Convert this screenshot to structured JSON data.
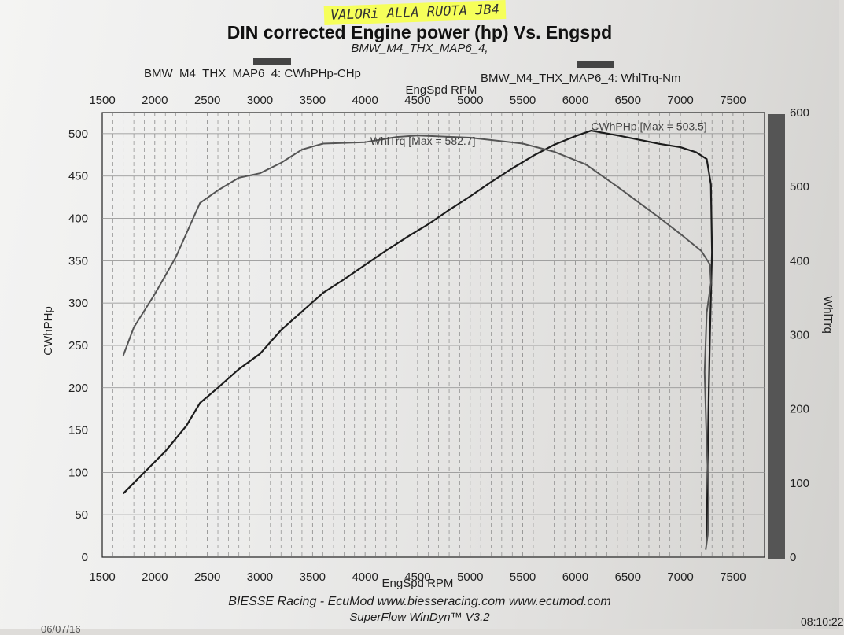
{
  "header": {
    "handwritten_note": "VALORi ALLA RUOTA JB4",
    "title": "DIN corrected Engine power (hp) Vs. Engspd",
    "subtitle": "BMW_M4_THX_MAP6_4,"
  },
  "legend": {
    "power_label": "BMW_M4_THX_MAP6_4: CWhPHp-CHp",
    "torque_label": "BMW_M4_THX_MAP6_4: WhlTrq-Nm"
  },
  "footer": {
    "line1": "BIESSE Racing - EcuMod www.biesseracing.com www.ecumod.com",
    "line2": "SuperFlow WinDyn™ V3.2",
    "timestamp": "08:10:22",
    "date": "06/07/16"
  },
  "colors": {
    "power_line": "#1c1c1c",
    "torque_line": "#555555",
    "grid": "#7a7a7a",
    "axis": "#222222",
    "legend_swatch": "#444444",
    "highlighter": "#f6ff5a"
  },
  "chart_data": {
    "type": "line",
    "xlabel": "EngSpd RPM",
    "ylabel_left": "CWhPHp",
    "ylabel_right": "WhlTrq",
    "xlim": [
      1500,
      7800
    ],
    "ylim_left": [
      0,
      525
    ],
    "ylim_right": [
      0,
      600
    ],
    "x_ticks": [
      1500,
      2000,
      2500,
      3000,
      3500,
      4000,
      4500,
      5000,
      5500,
      6000,
      6500,
      7000,
      7500
    ],
    "y_ticks_left": [
      0,
      50,
      100,
      150,
      200,
      250,
      300,
      350,
      400,
      450,
      500
    ],
    "y_ticks_right": [
      0,
      100,
      200,
      300,
      400,
      500,
      600
    ],
    "grid": true,
    "annotations": [
      "WhlTrq [Max = 582.7]",
      "CWhPHp [Max = 503.5]"
    ],
    "series": [
      {
        "name": "CWhPHp",
        "axis": "left",
        "x": [
          1700,
          1900,
          2100,
          2300,
          2430,
          2600,
          2800,
          3000,
          3200,
          3400,
          3600,
          3800,
          4000,
          4200,
          4400,
          4600,
          4800,
          5000,
          5200,
          5400,
          5600,
          5800,
          6000,
          6150,
          6400,
          6800,
          7000,
          7150,
          7250,
          7290,
          7300,
          7280,
          7270,
          7260,
          7250
        ],
        "y": [
          75,
          100,
          125,
          155,
          182,
          200,
          222,
          240,
          268,
          290,
          312,
          328,
          345,
          362,
          378,
          393,
          410,
          426,
          443,
          459,
          474,
          487,
          497,
          503.5,
          498,
          488,
          484,
          478,
          470,
          440,
          360,
          260,
          200,
          120,
          20
        ]
      },
      {
        "name": "WhlTrq",
        "axis": "right",
        "x": [
          1700,
          1800,
          2000,
          2200,
          2430,
          2600,
          2800,
          3000,
          3200,
          3400,
          3600,
          4000,
          4300,
          4500,
          5000,
          5500,
          5800,
          6100,
          6400,
          6800,
          7000,
          7200,
          7280,
          7290,
          7250,
          7230,
          7250,
          7270,
          7260,
          7240
        ],
        "y": [
          272,
          310,
          355,
          405,
          478,
          495,
          512,
          518,
          532,
          550,
          558,
          560,
          567,
          569,
          566,
          558,
          547,
          530,
          500,
          458,
          436,
          413,
          395,
          370,
          330,
          250,
          150,
          80,
          30,
          10
        ]
      }
    ]
  }
}
